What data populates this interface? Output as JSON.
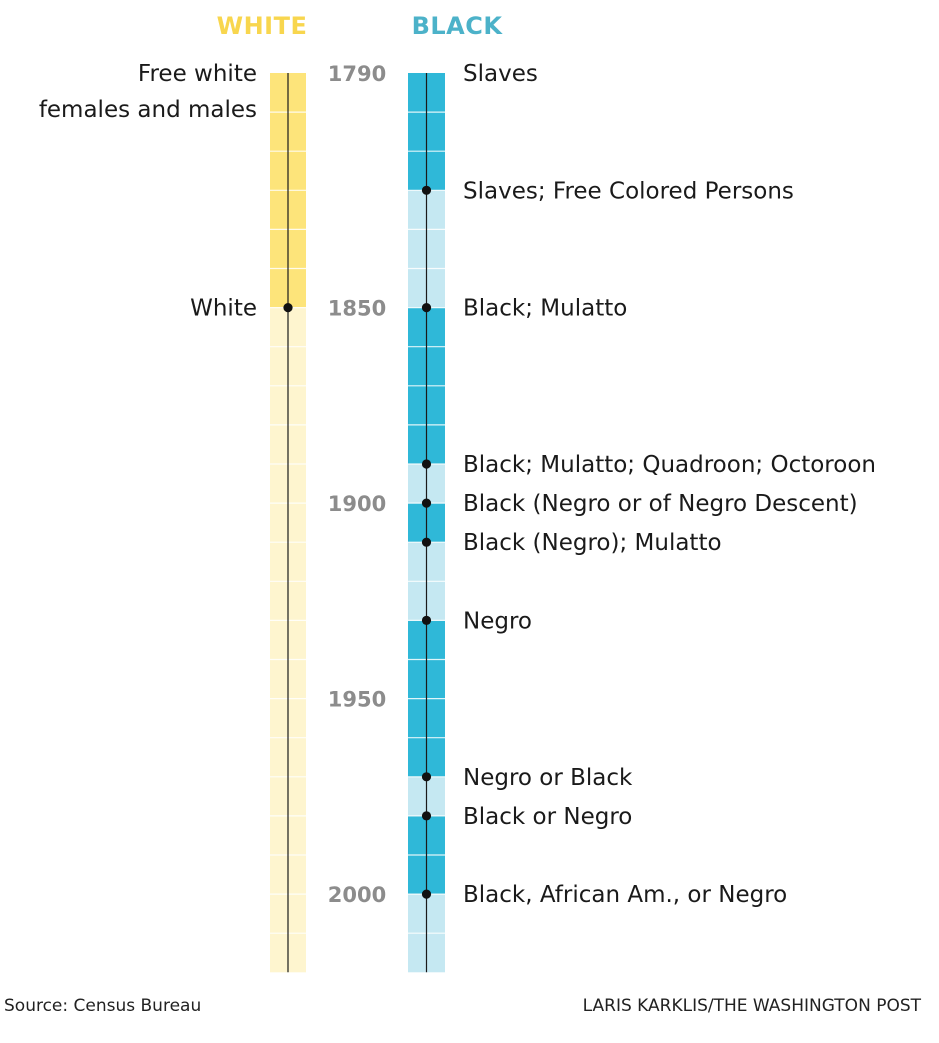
{
  "colors": {
    "white_dark": "#fde47a",
    "white_light": "#fef5cf",
    "black_dark": "#2fb8d8",
    "black_light": "#c5e8f2",
    "white_header": "#f8d64e",
    "black_header": "#4cb2c9",
    "year_label": "#8c8c8c"
  },
  "footer": {
    "source": "Source: Census Bureau",
    "credit": "LARIS KARKLIS/THE WASHINGTON POST"
  },
  "chart_data": {
    "type": "timeline",
    "year_range": [
      1790,
      2020
    ],
    "census_step_years": 10,
    "year_ticks": [
      1790,
      1850,
      1900,
      1950,
      2000
    ],
    "columns": [
      {
        "header": "WHITE",
        "changes": [
          {
            "year": 1790,
            "label_lines": [
              "Free white",
              "females and males"
            ]
          },
          {
            "year": 1850,
            "label_lines": [
              "White"
            ]
          }
        ]
      },
      {
        "header": "BLACK",
        "changes": [
          {
            "year": 1790,
            "label_lines": [
              "Slaves"
            ]
          },
          {
            "year": 1820,
            "label_lines": [
              "Slaves; Free Colored Persons"
            ]
          },
          {
            "year": 1850,
            "label_lines": [
              "Black; Mulatto"
            ]
          },
          {
            "year": 1890,
            "label_lines": [
              "Black; Mulatto; Quadroon; Octoroon"
            ]
          },
          {
            "year": 1900,
            "label_lines": [
              "Black (Negro or of Negro Descent)"
            ]
          },
          {
            "year": 1910,
            "label_lines": [
              "Black (Negro); Mulatto"
            ]
          },
          {
            "year": 1930,
            "label_lines": [
              "Negro"
            ]
          },
          {
            "year": 1970,
            "label_lines": [
              "Negro or Black"
            ]
          },
          {
            "year": 1980,
            "label_lines": [
              "Black or Negro"
            ]
          },
          {
            "year": 2000,
            "label_lines": [
              "Black, African Am., or Negro"
            ]
          }
        ]
      }
    ]
  }
}
